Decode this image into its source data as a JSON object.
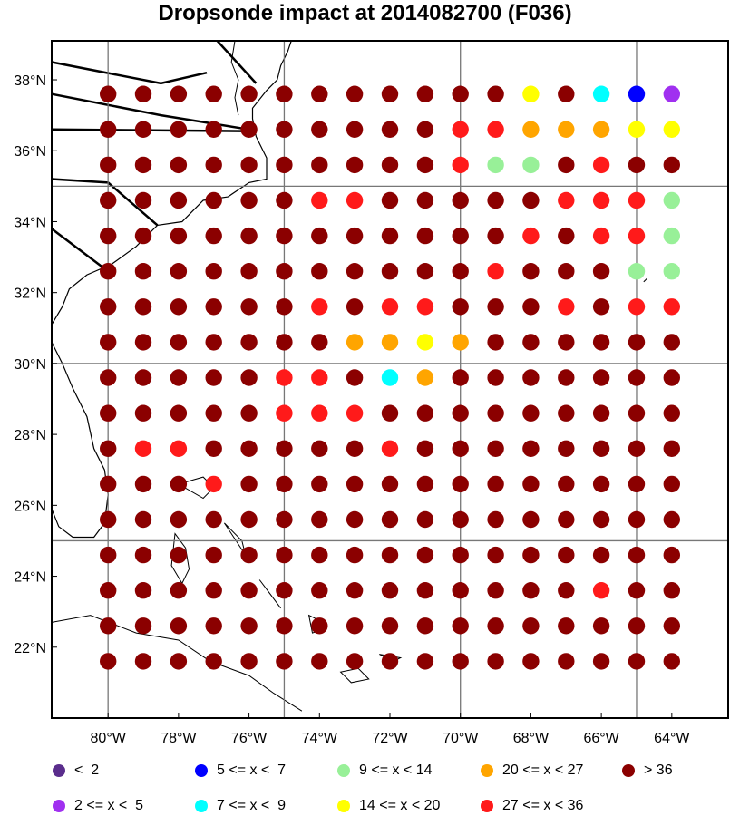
{
  "title": "Dropsonde impact at 2014082700 (F036)",
  "axes": {
    "x_ticks": [
      {
        "value": -80,
        "label": "80°W"
      },
      {
        "value": -78,
        "label": "78°W"
      },
      {
        "value": -76,
        "label": "76°W"
      },
      {
        "value": -74,
        "label": "74°W"
      },
      {
        "value": -72,
        "label": "72°W"
      },
      {
        "value": -70,
        "label": "70°W"
      },
      {
        "value": -68,
        "label": "68°W"
      },
      {
        "value": -66,
        "label": "66°W"
      },
      {
        "value": -64,
        "label": "64°W"
      }
    ],
    "y_ticks": [
      {
        "value": 38,
        "label": "38°N"
      },
      {
        "value": 36,
        "label": "36°N"
      },
      {
        "value": 34,
        "label": "34°N"
      },
      {
        "value": 32,
        "label": "32°N"
      },
      {
        "value": 30,
        "label": "30°N"
      },
      {
        "value": 28,
        "label": "28°N"
      },
      {
        "value": 26,
        "label": "26°N"
      },
      {
        "value": 24,
        "label": "24°N"
      },
      {
        "value": 22,
        "label": "22°N"
      }
    ]
  },
  "legend": [
    {
      "label": "<  2",
      "color": "#5a2d8c"
    },
    {
      "label": "2 <= x <  5",
      "color": "#a030f0"
    },
    {
      "label": "5 <= x <  7",
      "color": "#0000ff"
    },
    {
      "label": "7 <= x <  9",
      "color": "#00ffff"
    },
    {
      "label": "9 <= x < 14",
      "color": "#98f098"
    },
    {
      "label": "14 <= x < 20",
      "color": "#ffff00"
    },
    {
      "label": "20 <= x < 27",
      "color": "#ffa500"
    },
    {
      "label": "27 <= x < 36",
      "color": "#ff1a1a"
    },
    {
      "label": "> 36",
      "color": "#8b0000"
    }
  ],
  "chart_data": {
    "type": "scatter",
    "xlim": [
      -81.6,
      -62.4
    ],
    "ylim": [
      20.0,
      39.1
    ],
    "grid_lon": [
      -80,
      -79,
      -78,
      -77,
      -76,
      -75,
      -74,
      -73,
      -72,
      -71,
      -70,
      -69,
      -68,
      -67,
      -66,
      -65,
      -64
    ],
    "grid_lat": [
      37.6,
      36.6,
      35.6,
      34.6,
      33.6,
      32.6,
      31.6,
      30.6,
      29.6,
      28.6,
      27.6,
      26.6,
      25.6,
      24.6,
      23.6,
      22.6,
      21.6
    ],
    "legend_placement": "bottom",
    "category_rows": [
      "99999999999969432",
      "99999999998877766",
      "99999999998559899",
      "99999988999998885",
      "99999999999989885",
      "99999999999899955",
      "99999989889998988",
      "99999997767999999",
      "99999889479999999",
      "99999888999999999",
      "98899999899999999",
      "99989999999999999",
      "99999999999999999",
      "99999999999999999",
      "99999999999999899",
      "99999999999999999",
      "99999999999999999"
    ],
    "category_index_note": "digit indexes legend: 1=<2 ... 9=>36"
  }
}
